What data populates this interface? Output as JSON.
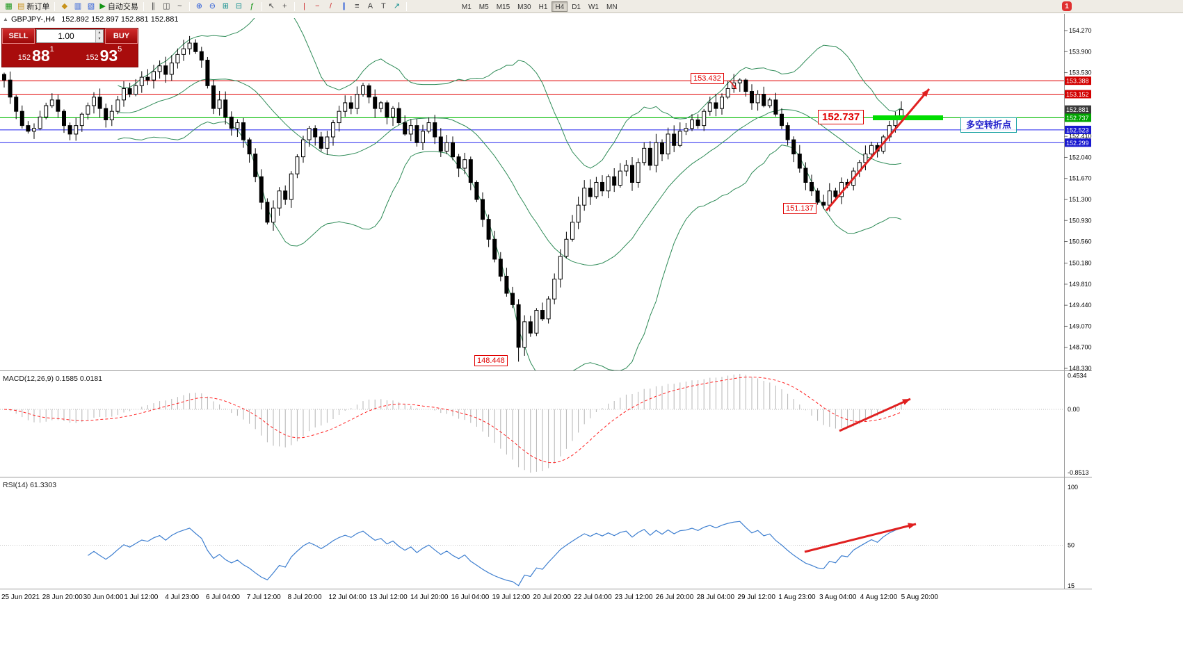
{
  "toolbar": {
    "new_order_label": "新订单",
    "auto_trading_label": "自动交易",
    "timeframes": [
      "M1",
      "M5",
      "M15",
      "M30",
      "H1",
      "H4",
      "D1",
      "W1",
      "MN"
    ],
    "active_timeframe": "H4",
    "notification_badge": "1"
  },
  "icons": {
    "chart_window": "▦",
    "new_order": "▤",
    "market_watch": "◆",
    "data_window": "▥",
    "navigator": "▧",
    "auto_trading_play": "▶",
    "bar_chart": "∥",
    "candlestick": "◫",
    "line_chart": "~",
    "zoom_in": "⊕",
    "zoom_out": "⊖",
    "tile_windows": "⊞",
    "cascade_windows": "⊟",
    "indicators": "ƒ",
    "cursor": "↖",
    "crosshair": "+",
    "vertical_line": "|",
    "horizontal_line": "−",
    "trendline": "/",
    "channel": "∥",
    "fibonacci": "≡",
    "text": "A",
    "label": "T",
    "arrows": "↗",
    "collapse_toggle": "▲",
    "volume_up": "▴",
    "volume_down": "▾"
  },
  "quote_panel": {
    "sell_label": "SELL",
    "buy_label": "BUY",
    "volume": "1.00",
    "bid": {
      "prefix": "152",
      "big": "88",
      "sup": "1"
    },
    "ask": {
      "prefix": "152",
      "big": "93",
      "sup": "5"
    }
  },
  "chart_header": {
    "symbol": "GBPJPY-,H4",
    "quotes": "152.892 152.897 152.881 152.881"
  },
  "panels": {
    "macd_label": "MACD(12,26,9) 0.1585 0.0181",
    "rsi_label": "RSI(14) 61.3303"
  },
  "price_scale": {
    "ticks": [
      "154.270",
      "153.900",
      "153.530",
      "152.410",
      "152.040",
      "151.670",
      "151.300",
      "150.930",
      "150.560",
      "150.180",
      "149.810",
      "149.440",
      "149.070",
      "148.700",
      "148.330"
    ],
    "badges": [
      {
        "value": "153.388",
        "color": "#d20000"
      },
      {
        "value": "153.152",
        "color": "#d20000"
      },
      {
        "value": "152.881",
        "color": "#3a3a3a"
      },
      {
        "value": "152.737",
        "color": "#00a400"
      },
      {
        "value": "152.523",
        "color": "#1818cf"
      },
      {
        "value": "152.299",
        "color": "#1818cf"
      }
    ],
    "macd_ticks": [
      "0.4534",
      "0.00",
      "-0.8513"
    ],
    "rsi_ticks": [
      "100",
      "50",
      "15"
    ]
  },
  "annotations": {
    "peak_label": "153.432",
    "level_label": "152.737",
    "low_label": "151.137",
    "bottom_label": "148.448",
    "turning_point_label": "多空转折点"
  },
  "time_axis": [
    "25 Jun 2021",
    "28 Jun 20:00",
    "30 Jun 04:00",
    "1 Jul 12:00",
    "4 Jul 23:00",
    "6 Jul 04:00",
    "7 Jul 12:00",
    "8 Jul 20:00",
    "12 Jul 04:00",
    "13 Jul 12:00",
    "14 Jul 20:00",
    "16 Jul 04:00",
    "19 Jul 12:00",
    "20 Jul 20:00",
    "22 Jul 04:00",
    "23 Jul 12:00",
    "26 Jul 20:00",
    "28 Jul 04:00",
    "29 Jul 12:00",
    "1 Aug 23:00",
    "3 Aug 04:00",
    "4 Aug 12:00",
    "5 Aug 20:00"
  ],
  "colors": {
    "level_red": "#e00000",
    "level_green": "#00bb00",
    "level_blue": "#2222ee",
    "bands_green": "#2e8b57",
    "macd_hist": "#b4b4b4",
    "macd_signal": "#ff2020",
    "rsi_blue": "#3e7fd0",
    "arrow_red": "#e02020",
    "highlight_green": "#00dd00",
    "candle_up": "#ffffff",
    "candle_down": "#000000",
    "badge_text": "#ffffff"
  },
  "chart_data": {
    "type": "candlestick",
    "symbol": "GBPJPY",
    "timeframe": "H4",
    "y_axis": {
      "max": 154.27,
      "min": 148.33
    },
    "first_open": 153.5,
    "closes": [
      153.4,
      153.1,
      152.85,
      152.6,
      152.5,
      152.55,
      152.75,
      152.95,
      153.05,
      152.85,
      152.6,
      152.45,
      152.6,
      152.8,
      152.95,
      153.1,
      152.9,
      152.7,
      152.85,
      153.05,
      153.25,
      153.15,
      153.3,
      153.45,
      153.4,
      153.55,
      153.65,
      153.5,
      153.7,
      153.85,
      153.95,
      154.05,
      153.9,
      153.75,
      153.3,
      152.9,
      153.05,
      152.75,
      152.55,
      152.65,
      152.35,
      152.1,
      151.7,
      151.25,
      150.9,
      151.15,
      151.45,
      151.3,
      151.75,
      152.05,
      152.35,
      152.55,
      152.4,
      152.2,
      152.4,
      152.65,
      152.85,
      153.0,
      152.9,
      153.15,
      153.3,
      153.1,
      152.9,
      153.0,
      152.75,
      152.9,
      152.65,
      152.45,
      152.6,
      152.3,
      152.5,
      152.65,
      152.4,
      152.15,
      152.3,
      152.05,
      151.85,
      152.0,
      151.6,
      151.3,
      150.95,
      150.6,
      150.25,
      149.95,
      149.65,
      149.45,
      148.7,
      149.15,
      148.95,
      149.35,
      149.2,
      149.55,
      149.9,
      150.3,
      150.6,
      150.9,
      151.2,
      151.5,
      151.35,
      151.6,
      151.45,
      151.7,
      151.55,
      151.8,
      151.9,
      151.6,
      151.95,
      152.2,
      151.9,
      152.3,
      152.1,
      152.45,
      152.25,
      152.5,
      152.55,
      152.7,
      152.6,
      152.85,
      153.0,
      152.9,
      153.1,
      153.25,
      153.35,
      153.4,
      153.2,
      153.0,
      153.15,
      152.95,
      153.05,
      152.8,
      152.6,
      152.35,
      152.1,
      151.85,
      151.6,
      151.45,
      151.25,
      151.2,
      151.45,
      151.35,
      151.6,
      151.55,
      151.8,
      151.95,
      152.1,
      152.25,
      152.15,
      152.4,
      152.6,
      152.75,
      152.88
    ],
    "extremes": [
      {
        "index": 86,
        "type": "low",
        "price": 148.448
      },
      {
        "index": 123,
        "type": "high",
        "price": 153.432
      },
      {
        "index": 137,
        "type": "low",
        "price": 151.137
      }
    ],
    "levels": {
      "red": [
        153.388,
        153.152
      ],
      "green": [
        152.737
      ],
      "blue": [
        152.523,
        152.299
      ]
    },
    "current_bid": 152.881,
    "indicators": {
      "bollinger": [
        20,
        2
      ],
      "macd": [
        12,
        26,
        9
      ],
      "rsi": [
        14
      ]
    }
  }
}
